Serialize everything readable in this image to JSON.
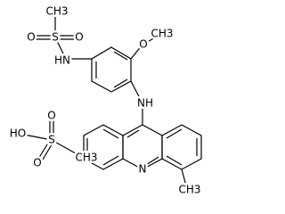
{
  "atoms": [
    {
      "label": "CH3"
    },
    {
      "label": "S"
    },
    {
      "label": "O"
    },
    {
      "label": "O"
    },
    {
      "label": "HN"
    },
    {
      "label": "O"
    },
    {
      "label": "CH3"
    },
    {
      "label": "NH"
    },
    {
      "label": "N"
    },
    {
      "label": "CH3"
    },
    {
      "label": "HO"
    },
    {
      "label": "S"
    },
    {
      "label": "O"
    },
    {
      "label": "O"
    },
    {
      "label": "CH3"
    }
  ]
}
